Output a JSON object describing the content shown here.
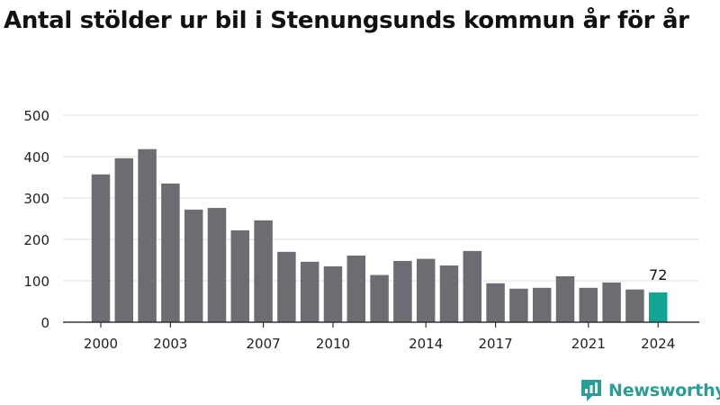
{
  "title": "Antal stölder ur bil i Stenungsunds kommun år för år",
  "brand": {
    "name": "Newsworthy",
    "color": "#2a9d94"
  },
  "colors": {
    "bar": "#6d6c72",
    "highlight": "#12a594",
    "grid": "#dddddd",
    "axis": "#333333"
  },
  "chart_data": {
    "type": "bar",
    "x": [
      2000,
      2001,
      2002,
      2003,
      2004,
      2005,
      2006,
      2007,
      2008,
      2009,
      2010,
      2011,
      2012,
      2013,
      2014,
      2015,
      2016,
      2017,
      2018,
      2019,
      2020,
      2021,
      2022,
      2023,
      2024
    ],
    "values": [
      357,
      396,
      418,
      335,
      272,
      276,
      222,
      246,
      170,
      146,
      135,
      161,
      114,
      148,
      153,
      137,
      172,
      94,
      81,
      83,
      111,
      83,
      96,
      79,
      72
    ],
    "highlight_index": 24,
    "data_labels": [
      {
        "index": 24,
        "text": "72"
      }
    ],
    "x_ticks": [
      "2000",
      "2003",
      "2007",
      "2010",
      "2014",
      "2017",
      "2021",
      "2024"
    ],
    "y_ticks": [
      "0",
      "100",
      "200",
      "300",
      "400",
      "500"
    ],
    "ylim": [
      0,
      500
    ],
    "grid": true,
    "legend": "none"
  }
}
